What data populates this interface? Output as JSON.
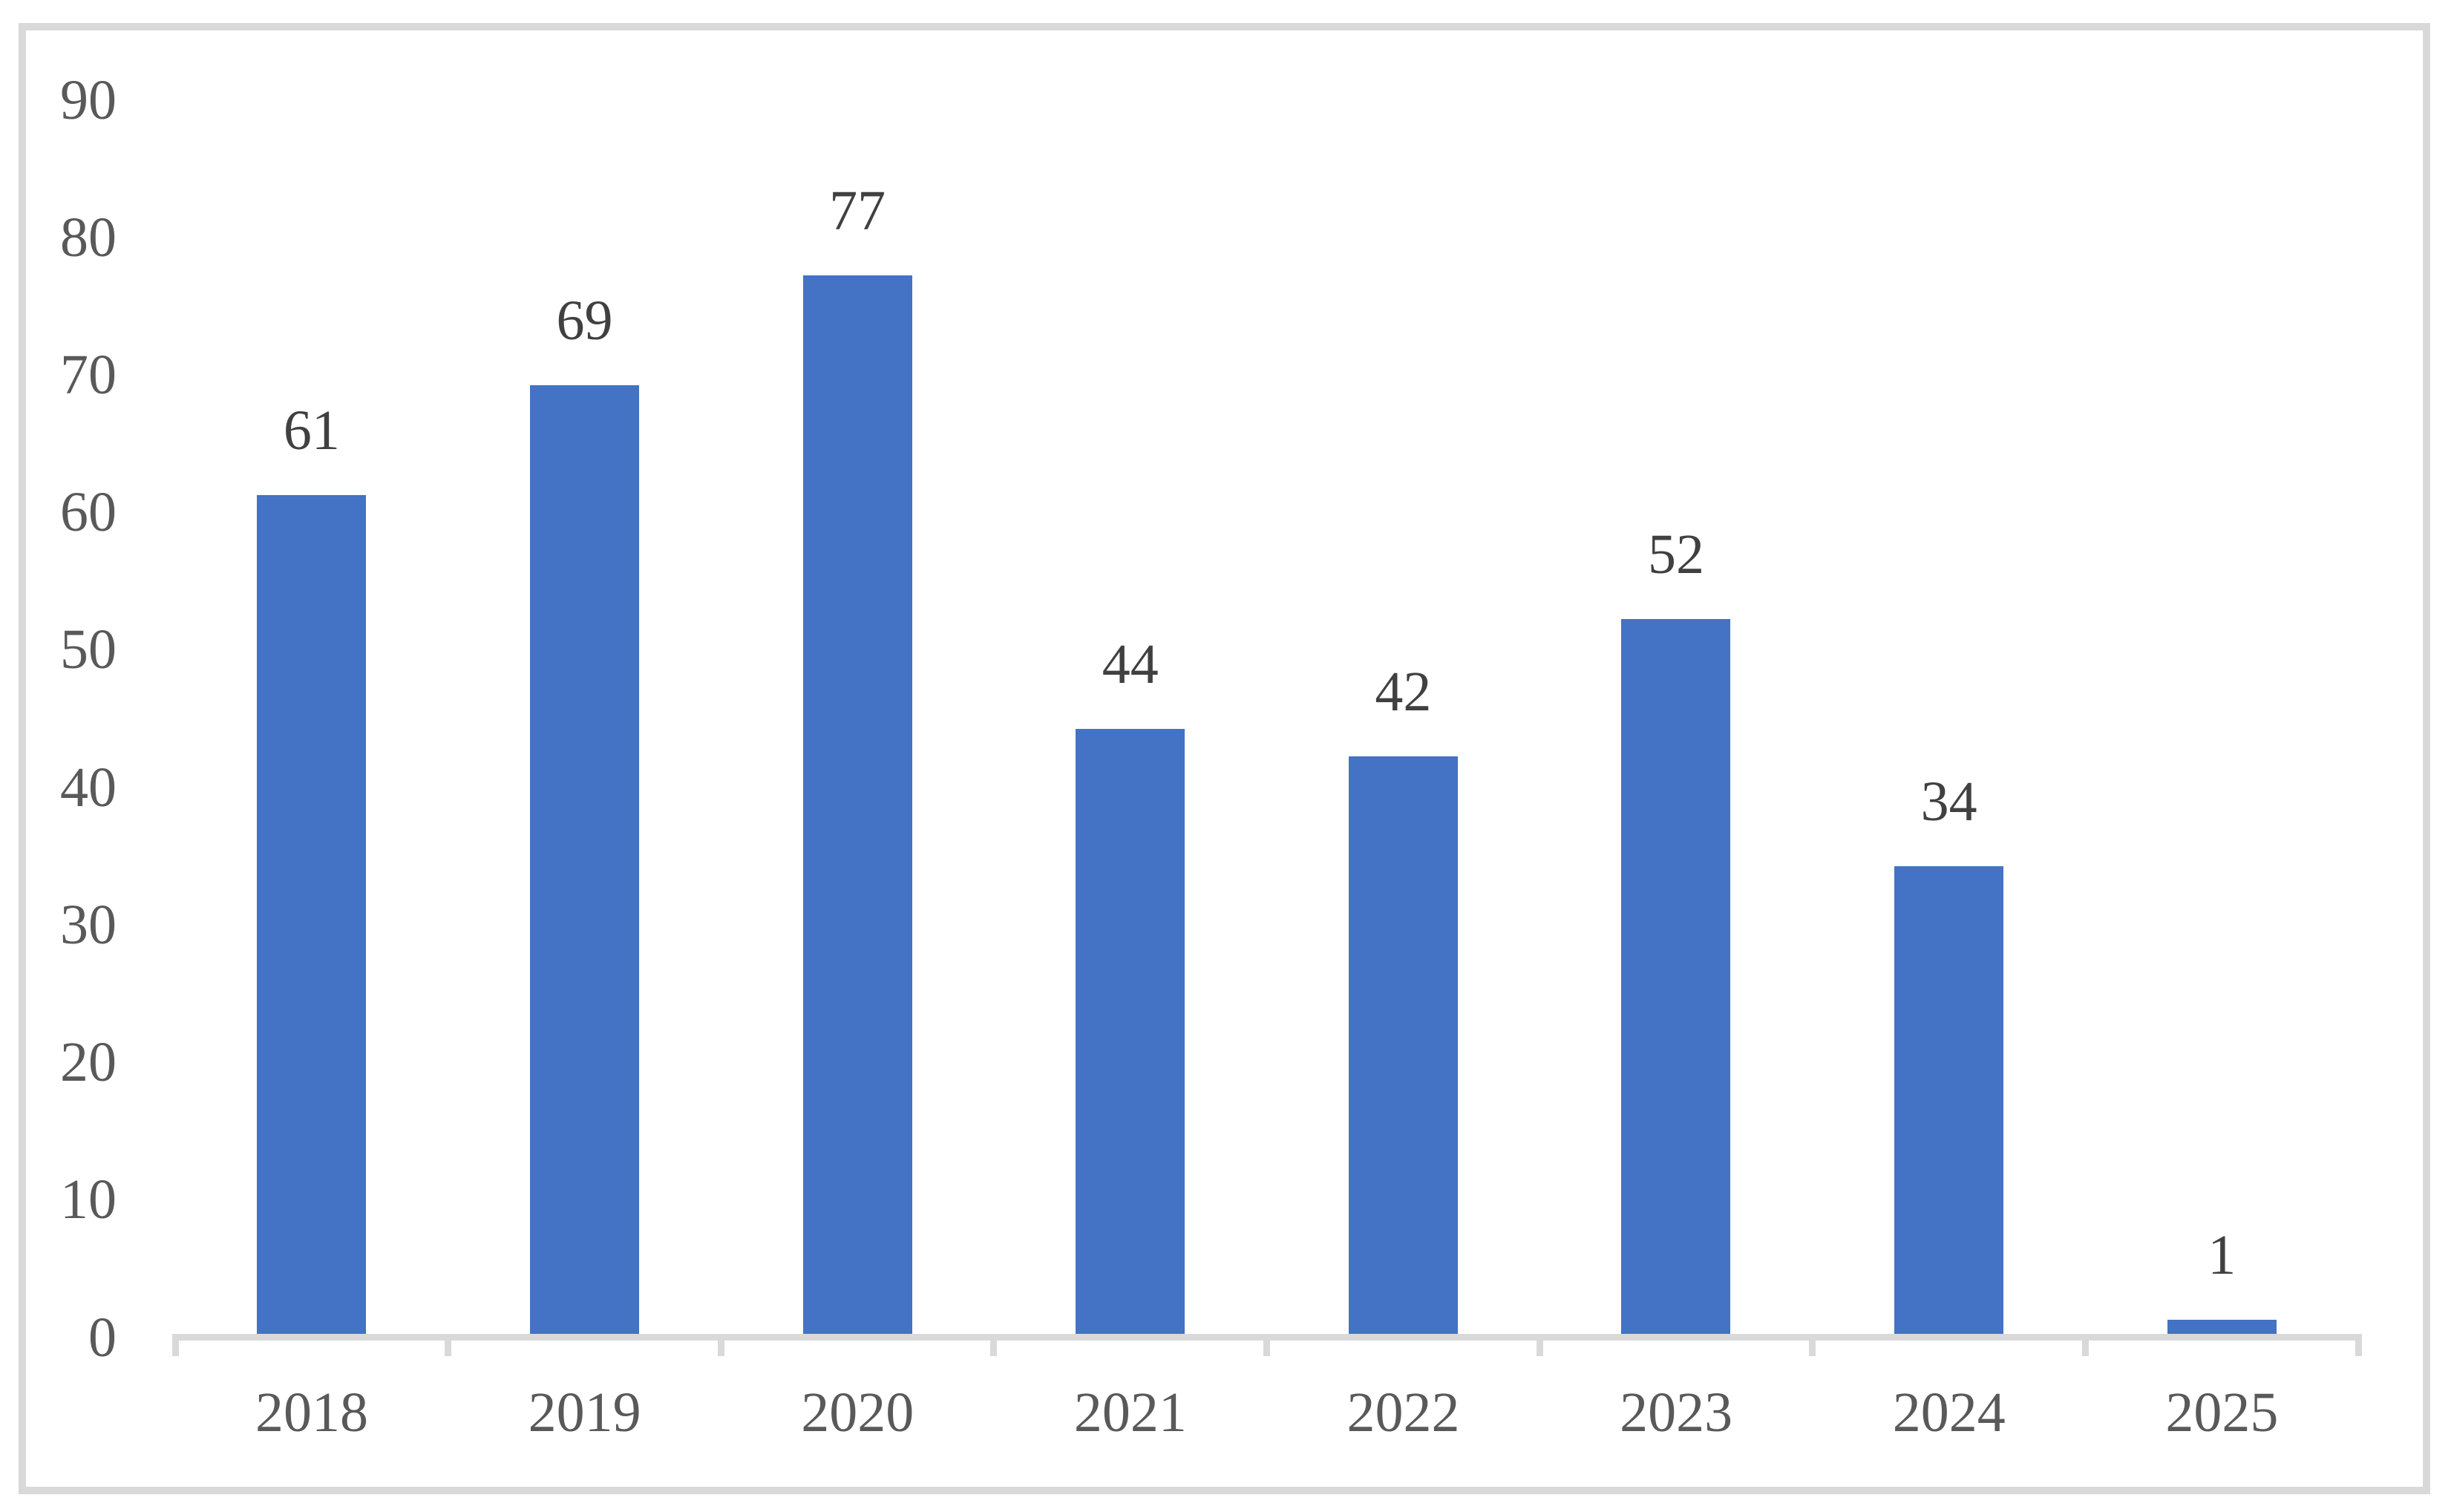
{
  "chart_data": {
    "type": "bar",
    "title": "",
    "xlabel": "",
    "ylabel": "",
    "categories": [
      "2018",
      "2019",
      "2020",
      "2021",
      "2022",
      "2023",
      "2024",
      "2025"
    ],
    "values": [
      61,
      69,
      77,
      44,
      42,
      52,
      34,
      1
    ],
    "data_labels": [
      "61",
      "69",
      "77",
      "44",
      "42",
      "52",
      "34",
      "1"
    ],
    "yticks": [
      0,
      10,
      20,
      30,
      40,
      50,
      60,
      70,
      80,
      90
    ],
    "ytick_labels": [
      "0",
      "10",
      "20",
      "30",
      "40",
      "50",
      "60",
      "70",
      "80",
      "90"
    ],
    "ylim": [
      0,
      90
    ],
    "grid": false,
    "legend": false,
    "bar_color": "#4472C4",
    "colors": {
      "bar": "#4472C4",
      "axis_line": "#D9D9D9",
      "tick_mark": "#D9D9D9",
      "frame_border": "#D9D9D9",
      "axis_label_text": "#595959",
      "data_label_text": "#404040",
      "background": "#FFFFFF"
    }
  }
}
